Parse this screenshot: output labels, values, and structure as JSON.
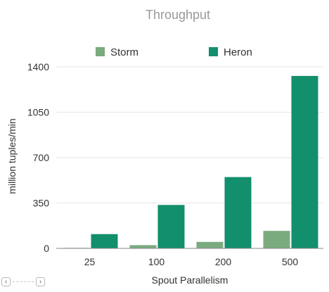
{
  "chart_data": {
    "type": "bar",
    "title": "Throughput",
    "xlabel": "Spout Parallelism",
    "ylabel": "million tuples/min",
    "categories": [
      "25",
      "100",
      "200",
      "500"
    ],
    "series": [
      {
        "name": "Storm",
        "color": "#7aab7e",
        "values": [
          4,
          25,
          50,
          135
        ]
      },
      {
        "name": "Heron",
        "color": "#128f6c",
        "values": [
          110,
          335,
          550,
          1330
        ]
      }
    ],
    "ylim": [
      0,
      1400
    ],
    "yticks": [
      0,
      350,
      700,
      1050,
      1400
    ],
    "grid": true,
    "legend": "top"
  },
  "nav": {
    "prev_icon": "chevron-left-icon",
    "next_icon": "chevron-right-icon"
  }
}
